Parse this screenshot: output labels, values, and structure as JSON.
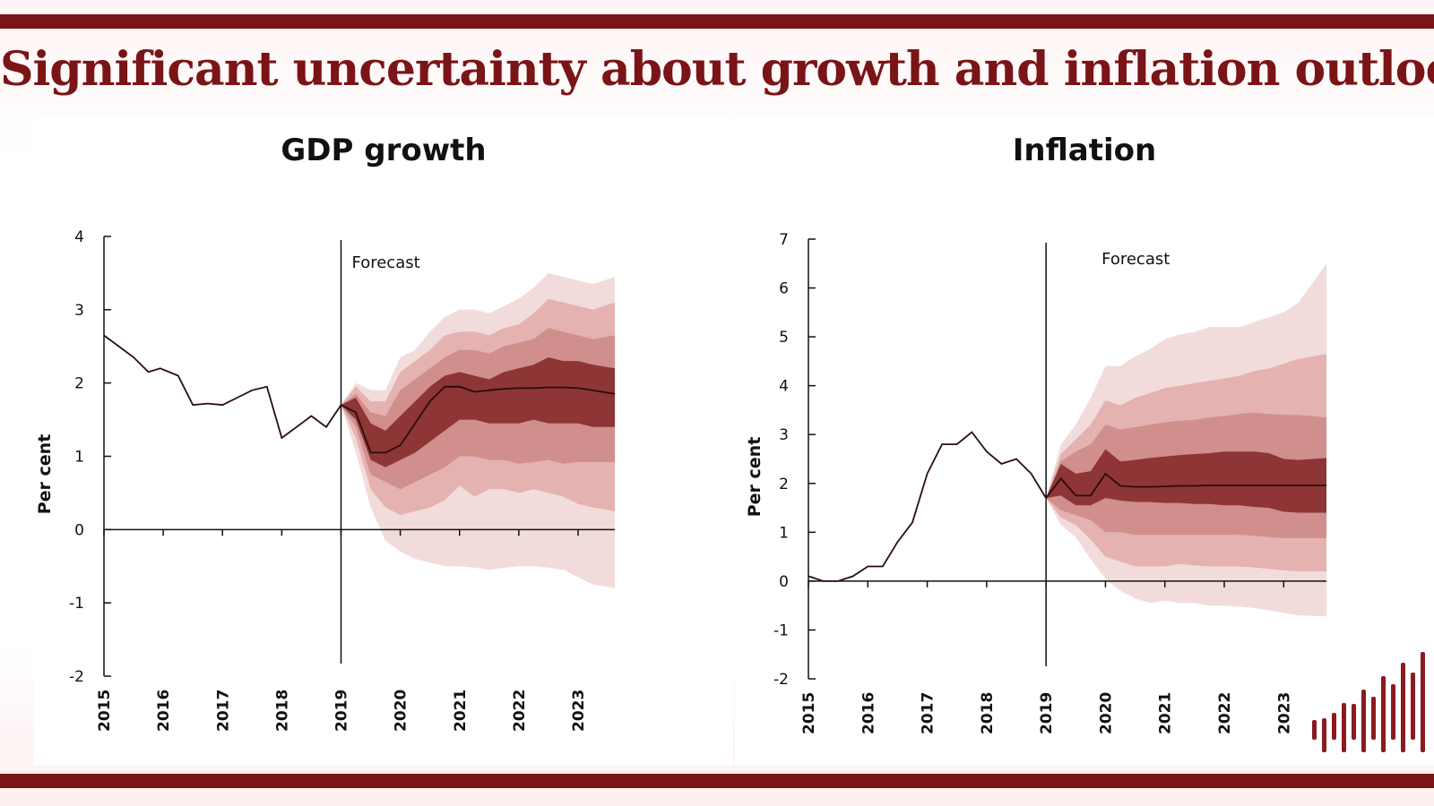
{
  "slide": {
    "title": "Significant uncertainty about growth and inflation outlook",
    "colors": {
      "accent": "#7a1417",
      "band_inner": "#8e3535",
      "band_2": "#d08e8c",
      "band_3": "#e4b2b0",
      "band_outer": "#f2dcdb"
    }
  },
  "chart_data": [
    {
      "type": "area",
      "title": "GDP growth",
      "ylabel": "Per cent",
      "xlabel": "",
      "forecast_label": "Forecast",
      "forecast_start": 2019.0,
      "xlim": [
        2015.0,
        2023.62
      ],
      "ylim": [
        -2,
        4
      ],
      "yticks": [
        -2,
        -1,
        0,
        1,
        2,
        3,
        4
      ],
      "xtick_labels": [
        "2015",
        "2016",
        "2017",
        "2018",
        "2019",
        "2020",
        "2021",
        "2022",
        "2023"
      ],
      "history": {
        "x": [
          2015.0,
          2015.5,
          2015.75,
          2015.95,
          2016.25,
          2016.5,
          2016.75,
          2017.0,
          2017.25,
          2017.5,
          2017.75,
          2018.0,
          2018.25,
          2018.5,
          2018.75,
          2019.0
        ],
        "y": [
          2.65,
          2.35,
          2.15,
          2.2,
          2.1,
          1.7,
          1.72,
          1.7,
          1.8,
          1.9,
          1.95,
          1.25,
          1.4,
          1.55,
          1.4,
          1.7
        ]
      },
      "forecast": {
        "x": [
          2019.0,
          2019.25,
          2019.5,
          2019.75,
          2020.0,
          2020.25,
          2020.5,
          2020.75,
          2021.0,
          2021.25,
          2021.5,
          2021.75,
          2022.0,
          2022.25,
          2022.5,
          2022.75,
          2023.0,
          2023.25,
          2023.62
        ],
        "central": [
          1.7,
          1.6,
          1.05,
          1.05,
          1.15,
          1.45,
          1.75,
          1.95,
          1.95,
          1.88,
          1.9,
          1.92,
          1.93,
          1.93,
          1.94,
          1.94,
          1.93,
          1.9,
          1.85
        ],
        "bands": [
          {
            "lower": [
              1.7,
              1.05,
              0.3,
              -0.15,
              -0.3,
              -0.4,
              -0.45,
              -0.5,
              -0.5,
              -0.52,
              -0.55,
              -0.52,
              -0.5,
              -0.5,
              -0.52,
              -0.55,
              -0.65,
              -0.75,
              -0.8
            ],
            "upper": [
              1.7,
              2.0,
              1.9,
              1.9,
              2.35,
              2.45,
              2.7,
              2.9,
              3.0,
              3.0,
              2.95,
              3.05,
              3.15,
              3.3,
              3.5,
              3.45,
              3.4,
              3.35,
              3.45
            ]
          },
          {
            "lower": [
              1.7,
              1.25,
              0.55,
              0.3,
              0.2,
              0.25,
              0.3,
              0.4,
              0.6,
              0.45,
              0.55,
              0.55,
              0.5,
              0.55,
              0.5,
              0.45,
              0.35,
              0.3,
              0.25
            ],
            "upper": [
              1.7,
              1.95,
              1.75,
              1.75,
              2.15,
              2.3,
              2.45,
              2.65,
              2.7,
              2.7,
              2.65,
              2.75,
              2.8,
              2.95,
              3.15,
              3.1,
              3.05,
              3.0,
              3.1
            ]
          },
          {
            "lower": [
              1.7,
              1.4,
              0.75,
              0.65,
              0.55,
              0.65,
              0.75,
              0.85,
              1.0,
              1.0,
              0.95,
              0.95,
              0.9,
              0.92,
              0.95,
              0.9,
              0.92,
              0.92,
              0.92
            ],
            "upper": [
              1.7,
              1.85,
              1.6,
              1.55,
              1.9,
              2.05,
              2.2,
              2.35,
              2.45,
              2.45,
              2.4,
              2.5,
              2.55,
              2.6,
              2.75,
              2.7,
              2.65,
              2.6,
              2.65
            ]
          },
          {
            "lower": [
              1.7,
              1.5,
              0.95,
              0.85,
              0.95,
              1.05,
              1.2,
              1.35,
              1.5,
              1.5,
              1.45,
              1.45,
              1.45,
              1.5,
              1.45,
              1.45,
              1.45,
              1.4,
              1.4
            ],
            "upper": [
              1.7,
              1.8,
              1.45,
              1.35,
              1.55,
              1.75,
              1.95,
              2.1,
              2.15,
              2.1,
              2.05,
              2.15,
              2.2,
              2.25,
              2.35,
              2.3,
              2.3,
              2.25,
              2.2
            ]
          }
        ]
      }
    },
    {
      "type": "area",
      "title": "Inflation",
      "ylabel": "Per cent",
      "xlabel": "",
      "forecast_label": "Forecast",
      "forecast_start": 2019.0,
      "xlim": [
        2015.0,
        2023.72
      ],
      "ylim": [
        -2,
        7
      ],
      "yticks": [
        -2,
        -1,
        0,
        1,
        2,
        3,
        4,
        5,
        6,
        7
      ],
      "xtick_labels": [
        "2015",
        "2016",
        "2017",
        "2018",
        "2019",
        "2020",
        "2021",
        "2022",
        "2023"
      ],
      "history": {
        "x": [
          2015.0,
          2015.25,
          2015.5,
          2015.75,
          2016.0,
          2016.25,
          2016.5,
          2016.75,
          2017.0,
          2017.25,
          2017.5,
          2017.75,
          2018.0,
          2018.25,
          2018.5,
          2018.75,
          2019.0
        ],
        "y": [
          0.1,
          0.0,
          0.0,
          0.1,
          0.3,
          0.3,
          0.8,
          1.2,
          2.2,
          2.8,
          2.8,
          3.05,
          2.65,
          2.4,
          2.5,
          2.2,
          1.7
        ]
      },
      "forecast": {
        "x": [
          2019.0,
          2019.25,
          2019.5,
          2019.75,
          2020.0,
          2020.25,
          2020.5,
          2020.75,
          2021.0,
          2021.25,
          2021.5,
          2021.75,
          2022.0,
          2022.25,
          2022.5,
          2022.75,
          2023.0,
          2023.25,
          2023.72
        ],
        "central": [
          1.7,
          2.1,
          1.75,
          1.75,
          2.2,
          1.95,
          1.93,
          1.93,
          1.94,
          1.95,
          1.95,
          1.96,
          1.96,
          1.96,
          1.96,
          1.96,
          1.96,
          1.96,
          1.96
        ],
        "bands": [
          {
            "lower": [
              1.7,
              1.15,
              0.9,
              0.45,
              0.05,
              -0.2,
              -0.35,
              -0.45,
              -0.4,
              -0.45,
              -0.45,
              -0.5,
              -0.5,
              -0.52,
              -0.55,
              -0.6,
              -0.65,
              -0.7,
              -0.72
            ],
            "upper": [
              1.7,
              2.8,
              3.2,
              3.75,
              4.4,
              4.4,
              4.6,
              4.75,
              4.95,
              5.05,
              5.1,
              5.2,
              5.2,
              5.2,
              5.3,
              5.4,
              5.5,
              5.7,
              6.5
            ]
          },
          {
            "lower": [
              1.7,
              1.3,
              1.15,
              0.85,
              0.5,
              0.4,
              0.3,
              0.3,
              0.3,
              0.35,
              0.32,
              0.3,
              0.3,
              0.3,
              0.28,
              0.25,
              0.22,
              0.2,
              0.2
            ],
            "upper": [
              1.7,
              2.6,
              2.9,
              3.2,
              3.7,
              3.6,
              3.75,
              3.85,
              3.95,
              4.0,
              4.05,
              4.1,
              4.15,
              4.2,
              4.3,
              4.35,
              4.45,
              4.55,
              4.65
            ]
          },
          {
            "lower": [
              1.7,
              1.45,
              1.35,
              1.25,
              1.0,
              1.0,
              0.95,
              0.95,
              0.95,
              0.95,
              0.95,
              0.95,
              0.95,
              0.95,
              0.93,
              0.9,
              0.88,
              0.88,
              0.88
            ],
            "upper": [
              1.7,
              2.45,
              2.65,
              2.8,
              3.2,
              3.1,
              3.15,
              3.2,
              3.25,
              3.28,
              3.3,
              3.35,
              3.38,
              3.42,
              3.45,
              3.42,
              3.4,
              3.4,
              3.35
            ]
          },
          {
            "lower": [
              1.7,
              1.75,
              1.55,
              1.55,
              1.7,
              1.65,
              1.62,
              1.62,
              1.6,
              1.6,
              1.58,
              1.58,
              1.55,
              1.55,
              1.52,
              1.5,
              1.42,
              1.4,
              1.4
            ],
            "upper": [
              1.7,
              2.4,
              2.2,
              2.25,
              2.7,
              2.45,
              2.48,
              2.52,
              2.55,
              2.58,
              2.6,
              2.62,
              2.65,
              2.65,
              2.65,
              2.62,
              2.5,
              2.48,
              2.52
            ]
          }
        ]
      }
    }
  ]
}
